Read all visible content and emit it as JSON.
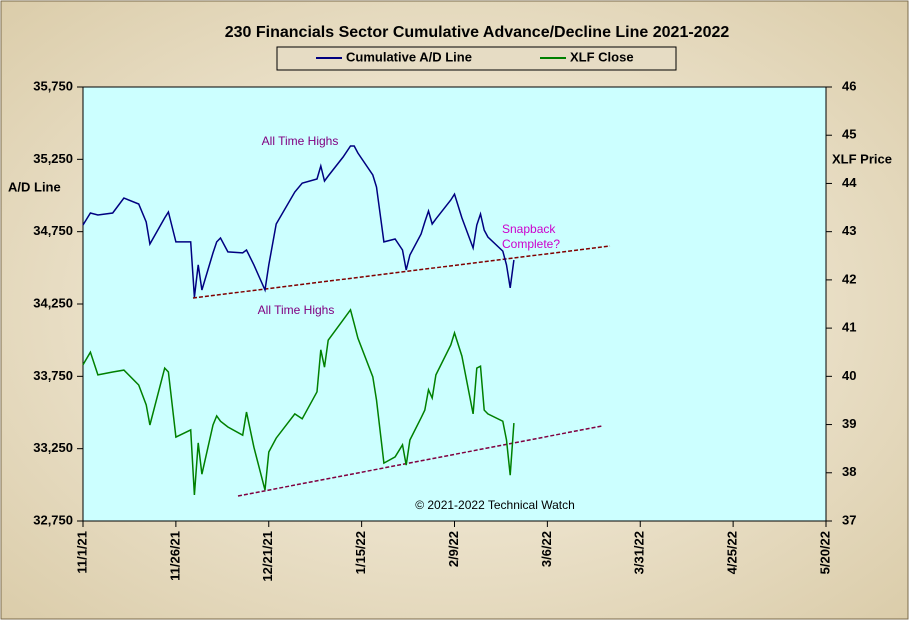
{
  "chart_data": {
    "type": "line",
    "title": "230 Financials  Sector Cumulative  Advance/Decline  Line 2021-2022",
    "ylabel": "A/D Line",
    "y2label": "XLF Price",
    "annotations": [
      "All Time Highs",
      "All Time Highs",
      "Snapback",
      "Complete?",
      "© 2021-2022  Technical Watch"
    ],
    "x": [
      "11/1/21",
      "11/3/21",
      "11/5/21",
      "11/9/21",
      "11/12/21",
      "11/16/21",
      "11/18/21",
      "11/19/21",
      "11/23/21",
      "11/24/21",
      "11/26/21",
      "11/30/21",
      "12/1/21",
      "12/2/21",
      "12/3/21",
      "12/6/21",
      "12/7/21",
      "12/8/21",
      "12/10/21",
      "12/14/21",
      "12/15/21",
      "12/17/21",
      "12/20/21",
      "12/21/21",
      "12/23/21",
      "12/28/21",
      "12/30/21",
      "1/3/22",
      "1/4/22",
      "1/5/22",
      "1/6/22",
      "1/10/22",
      "1/12/22",
      "1/13/22",
      "1/14/22",
      "1/18/22",
      "1/19/22",
      "1/21/22",
      "1/24/22",
      "1/26/22",
      "1/27/22",
      "1/28/22",
      "1/31/22",
      "2/1/22",
      "2/2/22",
      "2/3/22",
      "2/4/22",
      "2/8/22",
      "2/9/22",
      "2/11/22",
      "2/14/22",
      "2/15/22",
      "2/16/22",
      "2/17/22",
      "2/18/22",
      "2/22/22",
      "2/23/22",
      "2/24/22",
      "2/25/22"
    ],
    "series": [
      {
        "name": "Cumulative A/D Line",
        "color": "#000080",
        "axis": "y",
        "values": [
          34796,
          34879,
          34865,
          34879,
          34983,
          34941,
          34817,
          34665,
          34845,
          34886,
          34679,
          34679,
          34298,
          34520,
          34347,
          34603,
          34679,
          34706,
          34610,
          34603,
          34623,
          34520,
          34347,
          34520,
          34803,
          35024,
          35086,
          35114,
          35204,
          35100,
          35135,
          35266,
          35342,
          35342,
          35294,
          35142,
          35059,
          34679,
          34699,
          34623,
          34485,
          34589,
          34734,
          34817,
          34893,
          34803,
          34838,
          34969,
          35010,
          34845,
          34637,
          34796,
          34872,
          34761,
          34713,
          34616,
          34520,
          34361,
          34554
        ]
      },
      {
        "name": "XLF Close",
        "color": "#008000",
        "axis": "y2",
        "values": [
          40.24,
          40.5,
          40.03,
          40.09,
          40.13,
          39.82,
          39.41,
          38.99,
          40.17,
          40.09,
          38.74,
          38.89,
          37.54,
          38.62,
          37.97,
          38.99,
          39.18,
          39.07,
          38.95,
          38.78,
          39.26,
          38.53,
          37.64,
          38.43,
          38.72,
          39.22,
          39.12,
          39.68,
          40.55,
          40.19,
          40.75,
          41.17,
          41.38,
          41.09,
          40.79,
          39.99,
          39.51,
          38.2,
          38.33,
          38.58,
          38.16,
          38.68,
          39.14,
          39.3,
          39.72,
          39.55,
          40.03,
          40.65,
          40.9,
          40.42,
          39.22,
          40.17,
          40.21,
          39.3,
          39.22,
          39.07,
          38.68,
          37.95,
          39.03
        ]
      }
    ],
    "xlim": [
      "11/1/21",
      "5/20/22"
    ],
    "xticks": [
      "11/1/21",
      "11/26/21",
      "12/21/21",
      "1/15/22",
      "2/9/22",
      "3/6/22",
      "3/31/22",
      "4/25/22",
      "5/20/22"
    ],
    "ylim": [
      32750,
      35750
    ],
    "yticks": [
      {
        "value": 32750,
        "label": "32,750"
      },
      {
        "value": 33250,
        "label": "33,250"
      },
      {
        "value": 33750,
        "label": "33,750"
      },
      {
        "value": 34250,
        "label": "34,250"
      },
      {
        "value": 34750,
        "label": "34,750"
      },
      {
        "value": 35250,
        "label": "35,250"
      },
      {
        "value": 35750,
        "label": "35,750"
      }
    ],
    "y2lim": [
      37,
      46
    ],
    "y2ticks": [
      37,
      38,
      39,
      40,
      41,
      42,
      43,
      44,
      45,
      46
    ]
  }
}
